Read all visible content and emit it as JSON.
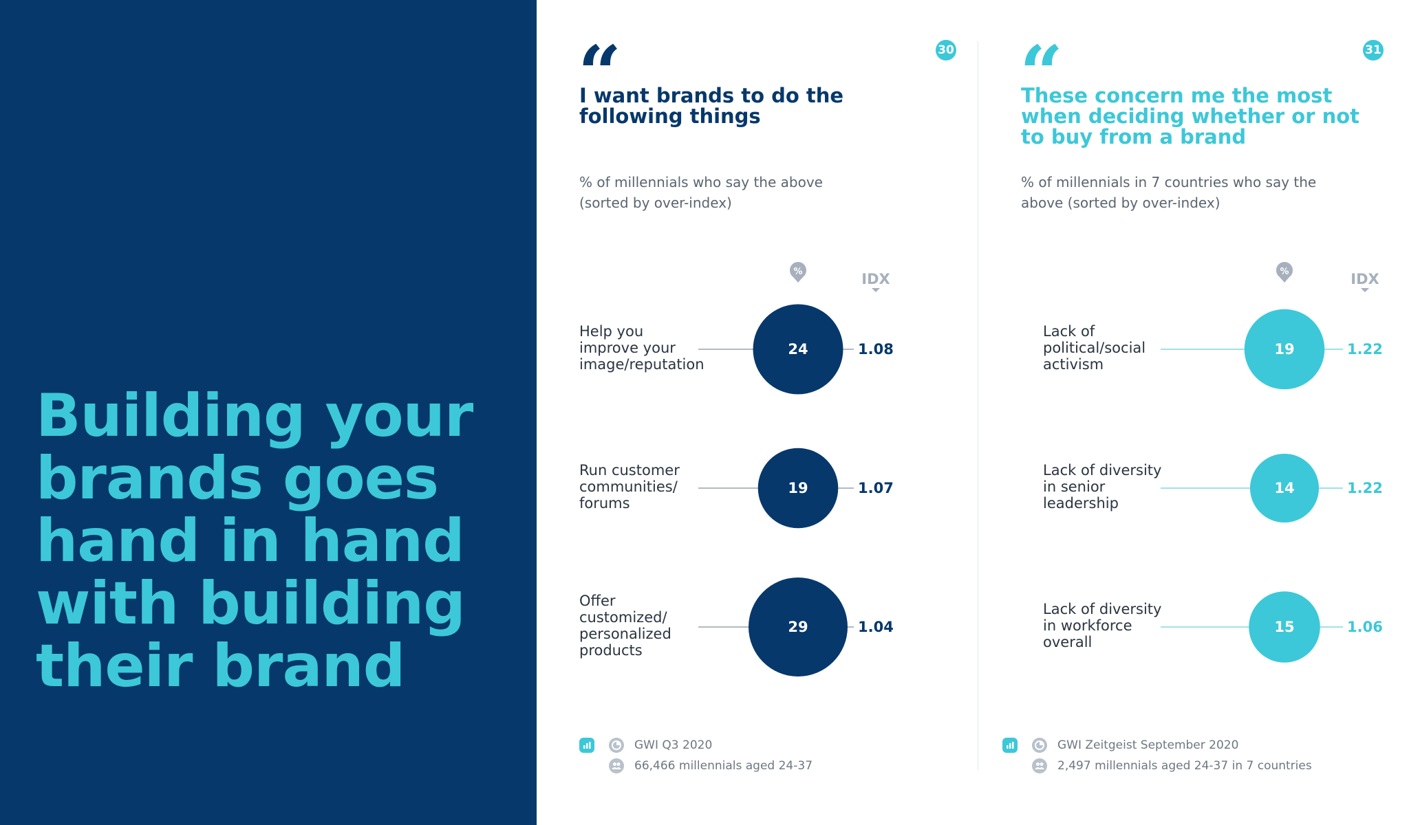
{
  "left": {
    "headline_lines": [
      "Building your",
      "brands goes",
      "hand in hand",
      "with building",
      "their brand"
    ]
  },
  "colors": {
    "navy": "#06386b",
    "teal": "#3cc8d8",
    "grey_text": "#5b6470",
    "line_grey": "#9aa3ad",
    "line_teal": "#7fd8e3"
  },
  "chart_data": [
    {
      "type": "bubble",
      "page": "30",
      "title": "I want brands to do the following things",
      "subtitle": "% of millennials who say the above (sorted by over-index)",
      "columns": [
        "%",
        "IDX"
      ],
      "categories": [
        "Help you improve your image/reputation",
        "Run customer communities/ forums",
        "Offer customized/ personalized products"
      ],
      "label_lines": [
        [
          "Help you",
          "improve your",
          "image/reputation"
        ],
        [
          "Run customer",
          "communities/",
          "forums"
        ],
        [
          "Offer",
          "customized/",
          "personalized",
          "products"
        ]
      ],
      "percent": [
        24,
        19,
        29
      ],
      "index": [
        1.08,
        1.07,
        1.04
      ],
      "index_labels": [
        "1.08",
        "1.07",
        "1.04"
      ],
      "color": "#06386b",
      "source": "GWI Q3 2020",
      "sample": "66,466 millennials aged 24-37"
    },
    {
      "type": "bubble",
      "page": "31",
      "title": "These concern me the most when deciding whether or not to buy from a brand",
      "subtitle": "% of millennials in 7 countries who say the above (sorted by over-index)",
      "columns": [
        "%",
        "IDX"
      ],
      "categories": [
        "Lack of political/social activism",
        "Lack of diversity in senior leadership",
        "Lack of diversity in workforce overall"
      ],
      "label_lines": [
        [
          "Lack of",
          "political/social",
          "activism"
        ],
        [
          "Lack of diversity",
          "in senior",
          "leadership"
        ],
        [
          "Lack of diversity",
          "in workforce",
          "overall"
        ]
      ],
      "percent": [
        19,
        14,
        15
      ],
      "index": [
        1.22,
        1.22,
        1.06
      ],
      "index_labels": [
        "1.22",
        "1.22",
        "1.06"
      ],
      "color": "#3cc8d8",
      "source": "GWI Zeitgeist September 2020",
      "sample": "2,497 millennials aged 24-37 in 7 countries"
    }
  ]
}
